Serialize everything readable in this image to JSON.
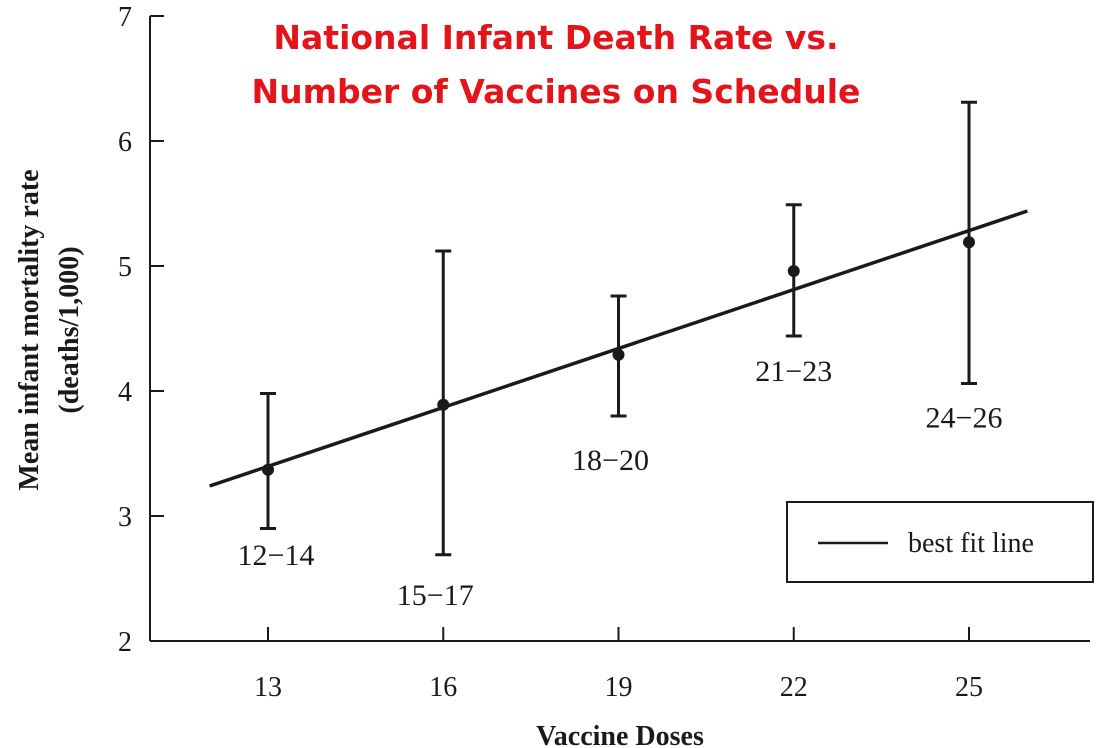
{
  "chart_data": {
    "type": "scatter",
    "title_line1": "National Infant Death Rate vs.",
    "title_line2": "Number of Vaccines on Schedule",
    "xlabel": "Vaccine Doses",
    "ylabel_line1": "Mean infant mortality rate",
    "ylabel_line2": "(deaths/1,000)",
    "xlim": [
      11,
      26.5
    ],
    "ylim": [
      2,
      7
    ],
    "xticks": [
      13,
      16,
      19,
      22,
      25
    ],
    "yticks": [
      2,
      3,
      4,
      5,
      6,
      7
    ],
    "grid": false,
    "legend": {
      "position": "bottom-right",
      "entries": [
        "best fit line"
      ]
    },
    "points": [
      {
        "x": 13,
        "y": 3.37,
        "err_low": 2.9,
        "err_high": 3.98,
        "label": "12−14"
      },
      {
        "x": 16,
        "y": 3.89,
        "err_low": 2.69,
        "err_high": 5.12,
        "label": "15−17"
      },
      {
        "x": 19,
        "y": 4.29,
        "err_low": 3.8,
        "err_high": 4.76,
        "label": "18−20"
      },
      {
        "x": 22,
        "y": 4.96,
        "err_low": 4.44,
        "err_high": 5.49,
        "label": "21−23"
      },
      {
        "x": 25,
        "y": 5.19,
        "err_low": 4.06,
        "err_high": 6.31,
        "label": "24−26"
      }
    ],
    "fit_line": {
      "x": [
        12,
        26
      ],
      "y": [
        3.24,
        5.44
      ]
    },
    "colors": {
      "title": "#e3151a",
      "ink": "#1a1a1a"
    }
  }
}
